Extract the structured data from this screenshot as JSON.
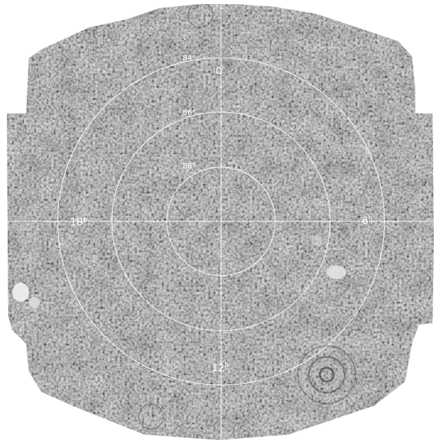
{
  "image": {
    "description_kind": "polar sky map mosaic",
    "colors": {
      "background": "#ffffff",
      "grid_lines": "#ffffff",
      "labels": "#ffffff",
      "field_mid": "#8a8a8a"
    }
  },
  "declination_labels": [
    {
      "id": "dec-84",
      "text": "84°"
    },
    {
      "id": "dec-86",
      "text": "86°"
    },
    {
      "id": "dec-88",
      "text": "88°"
    }
  ],
  "hour_labels": [
    {
      "id": "ra-0",
      "num": "0",
      "unit": "h"
    },
    {
      "id": "ra-6",
      "num": "6",
      "unit": "h"
    },
    {
      "id": "ra-12",
      "num": "12",
      "unit": "h"
    },
    {
      "id": "ra-18",
      "num": "18",
      "unit": "h"
    }
  ]
}
